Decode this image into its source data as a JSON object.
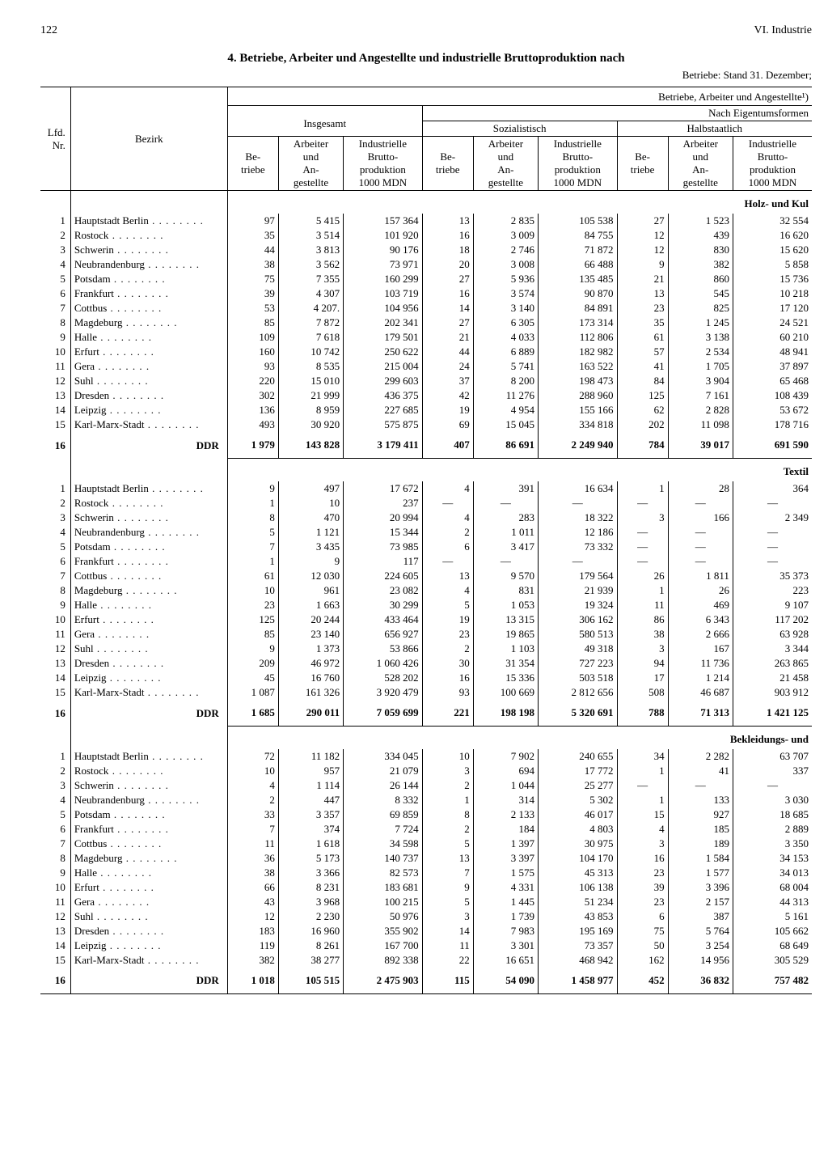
{
  "page_number": "122",
  "chapter": "VI. Industrie",
  "title": "4. Betriebe, Arbeiter und Angestellte und industrielle Bruttoproduktion nach",
  "subtitle": "Betriebe: Stand 31. Dezember;",
  "header": {
    "super": "Betriebe, Arbeiter und Angestellte¹)",
    "insgesamt": "Insgesamt",
    "nach_eigentum": "Nach Eigentumsformen",
    "sozialistisch": "Sozialistisch",
    "halbstaatlich": "Halbstaatlich",
    "lfd": "Lfd.\nNr.",
    "bezirk": "Bezirk",
    "betriebe": "Be-\ntriebe",
    "arbeiter": "Arbeiter\nund\nAn-\ngestellte",
    "brutto": "Industrielle\nBrutto-\nproduktion\n1000 MDN"
  },
  "bezirke": [
    "Hauptstadt Berlin",
    "Rostock",
    "Schwerin",
    "Neubrandenburg",
    "Potsdam",
    "Frankfurt",
    "Cottbus",
    "Magdeburg",
    "Halle",
    "Erfurt",
    "Gera",
    "Suhl",
    "Dresden",
    "Leipzig",
    "Karl-Marx-Stadt"
  ],
  "ddr": "DDR",
  "groups": [
    {
      "label": "Holz- und Kul",
      "rows": [
        [
          "97",
          "5 415",
          "157 364",
          "13",
          "2 835",
          "105 538",
          "27",
          "1 523",
          "32 554"
        ],
        [
          "35",
          "3 514",
          "101 920",
          "16",
          "3 009",
          "84 755",
          "12",
          "439",
          "16 620"
        ],
        [
          "44",
          "3 813",
          "90 176",
          "18",
          "2 746",
          "71 872",
          "12",
          "830",
          "15 620"
        ],
        [
          "38",
          "3 562",
          "73 971",
          "20",
          "3 008",
          "66 488",
          "9",
          "382",
          "5 858"
        ],
        [
          "75",
          "7 355",
          "160 299",
          "27",
          "5 936",
          "135 485",
          "21",
          "860",
          "15 736"
        ],
        [
          "39",
          "4 307",
          "103 719",
          "16",
          "3 574",
          "90 870",
          "13",
          "545",
          "10 218"
        ],
        [
          "53",
          "4 207.",
          "104 956",
          "14",
          "3 140",
          "84 891",
          "23",
          "825",
          "17 120"
        ],
        [
          "85",
          "7 872",
          "202 341",
          "27",
          "6 305",
          "173 314",
          "35",
          "1 245",
          "24 521"
        ],
        [
          "109",
          "7 618",
          "179 501",
          "21",
          "4 033",
          "112 806",
          "61",
          "3 138",
          "60 210"
        ],
        [
          "160",
          "10 742",
          "250 622",
          "44",
          "6 889",
          "182 982",
          "57",
          "2 534",
          "48 941"
        ],
        [
          "93",
          "8 535",
          "215 004",
          "24",
          "5 741",
          "163 522",
          "41",
          "1 705",
          "37 897"
        ],
        [
          "220",
          "15 010",
          "299 603",
          "37",
          "8 200",
          "198 473",
          "84",
          "3 904",
          "65 468"
        ],
        [
          "302",
          "21 999",
          "436 375",
          "42",
          "11 276",
          "288 960",
          "125",
          "7 161",
          "108 439"
        ],
        [
          "136",
          "8 959",
          "227 685",
          "19",
          "4 954",
          "155 166",
          "62",
          "2 828",
          "53 672"
        ],
        [
          "493",
          "30 920",
          "575 875",
          "69",
          "15 045",
          "334 818",
          "202",
          "11 098",
          "178 716"
        ]
      ],
      "total": [
        "1 979",
        "143 828",
        "3 179 411",
        "407",
        "86 691",
        "2 249 940",
        "784",
        "39 017",
        "691 590"
      ]
    },
    {
      "label": "Textil",
      "rows": [
        [
          "9",
          "497",
          "17 672",
          "4",
          "391",
          "16 634",
          "1",
          "28",
          "364"
        ],
        [
          "1",
          "10",
          "237",
          "—",
          "—",
          "—",
          "—",
          "—",
          "—"
        ],
        [
          "8",
          "470",
          "20 994",
          "4",
          "283",
          "18 322",
          "3",
          "166",
          "2 349"
        ],
        [
          "5",
          "1 121",
          "15 344",
          "2",
          "1 011",
          "12 186",
          "—",
          "—",
          "—"
        ],
        [
          "7",
          "3 435",
          "73 985",
          "6",
          "3 417",
          "73 332",
          "—",
          "—",
          "—"
        ],
        [
          "1",
          "9",
          "117",
          "—",
          "—",
          "—",
          "—",
          "—",
          "—"
        ],
        [
          "61",
          "12 030",
          "224 605",
          "13",
          "9 570",
          "179 564",
          "26",
          "1 811",
          "35 373"
        ],
        [
          "10",
          "961",
          "23 082",
          "4",
          "831",
          "21 939",
          "1",
          "26",
          "223"
        ],
        [
          "23",
          "1 663",
          "30 299",
          "5",
          "1 053",
          "19 324",
          "11",
          "469",
          "9 107"
        ],
        [
          "125",
          "20 244",
          "433 464",
          "19",
          "13 315",
          "306 162",
          "86",
          "6 343",
          "117 202"
        ],
        [
          "85",
          "23 140",
          "656 927",
          "23",
          "19 865",
          "580 513",
          "38",
          "2 666",
          "63 928"
        ],
        [
          "9",
          "1 373",
          "53 866",
          "2",
          "1 103",
          "49 318",
          "3",
          "167",
          "3 344"
        ],
        [
          "209",
          "46 972",
          "1 060 426",
          "30",
          "31 354",
          "727 223",
          "94",
          "11 736",
          "263 865"
        ],
        [
          "45",
          "16 760",
          "528 202",
          "16",
          "15 336",
          "503 518",
          "17",
          "1 214",
          "21 458"
        ],
        [
          "1 087",
          "161 326",
          "3 920 479",
          "93",
          "100 669",
          "2 812 656",
          "508",
          "46 687",
          "903 912"
        ]
      ],
      "total": [
        "1 685",
        "290 011",
        "7 059 699",
        "221",
        "198 198",
        "5 320 691",
        "788",
        "71 313",
        "1 421 125"
      ]
    },
    {
      "label": "Bekleidungs- und",
      "rows": [
        [
          "72",
          "11 182",
          "334 045",
          "10",
          "7 902",
          "240 655",
          "34",
          "2 282",
          "63 707"
        ],
        [
          "10",
          "957",
          "21 079",
          "3",
          "694",
          "17 772",
          "1",
          "41",
          "337"
        ],
        [
          "4",
          "1 114",
          "26 144",
          "2",
          "1 044",
          "25 277",
          "—",
          "—",
          "—"
        ],
        [
          "2",
          "447",
          "8 332",
          "1",
          "314",
          "5 302",
          "1",
          "133",
          "3 030"
        ],
        [
          "33",
          "3 357",
          "69 859",
          "8",
          "2 133",
          "46 017",
          "15",
          "927",
          "18 685"
        ],
        [
          "7",
          "374",
          "7 724",
          "2",
          "184",
          "4 803",
          "4",
          "185",
          "2 889"
        ],
        [
          "11",
          "1 618",
          "34 598",
          "5",
          "1 397",
          "30 975",
          "3",
          "189",
          "3 350"
        ],
        [
          "36",
          "5 173",
          "140 737",
          "13",
          "3 397",
          "104 170",
          "16",
          "1 584",
          "34 153"
        ],
        [
          "38",
          "3 366",
          "82 573",
          "7",
          "1 575",
          "45 313",
          "23",
          "1 577",
          "34 013"
        ],
        [
          "66",
          "8 231",
          "183 681",
          "9",
          "4 331",
          "106 138",
          "39",
          "3 396",
          "68 004"
        ],
        [
          "43",
          "3 968",
          "100 215",
          "5",
          "1 445",
          "51 234",
          "23",
          "2 157",
          "44 313"
        ],
        [
          "12",
          "2 230",
          "50 976",
          "3",
          "1 739",
          "43 853",
          "6",
          "387",
          "5 161"
        ],
        [
          "183",
          "16 960",
          "355 902",
          "14",
          "7 983",
          "195 169",
          "75",
          "5 764",
          "105 662"
        ],
        [
          "119",
          "8 261",
          "167 700",
          "11",
          "3 301",
          "73 357",
          "50",
          "3 254",
          "68 649"
        ],
        [
          "382",
          "38 277",
          "892 338",
          "22",
          "16 651",
          "468 942",
          "162",
          "14 956",
          "305 529"
        ]
      ],
      "total": [
        "1 018",
        "105 515",
        "2 475 903",
        "115",
        "54 090",
        "1 458 977",
        "452",
        "36 832",
        "757 482"
      ]
    }
  ],
  "colwidths": [
    "30",
    "165",
    "55",
    "70",
    "85",
    "55",
    "70",
    "85",
    "55",
    "70",
    "85"
  ]
}
